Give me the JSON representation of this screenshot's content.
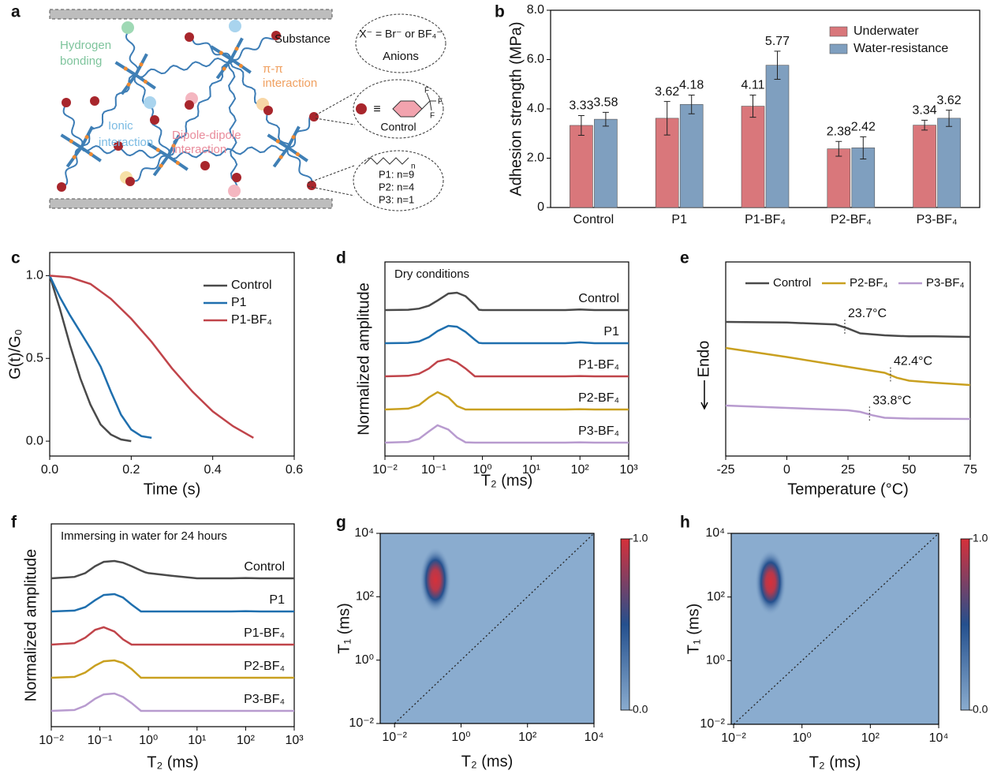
{
  "panel_labels": [
    "a",
    "b",
    "c",
    "d",
    "e",
    "f",
    "g",
    "h"
  ],
  "diagram": {
    "labels": [
      "Hydrogen",
      "bonding",
      "Substance",
      "X⁻ = Br⁻ or BF₄⁻",
      "Anions",
      "π-π",
      "interaction",
      "Ionic",
      "interaction",
      "Dipole-dipole",
      "interaction",
      "Control",
      "P1: n=9",
      "P2: n=4",
      "P3: n=1",
      "F",
      "F",
      "F",
      "n",
      "≡"
    ]
  },
  "chart_data": [
    {
      "type": "bar",
      "ylabel": "Adhesion strength (MPa)",
      "categories": [
        "Control",
        "P1",
        "P1-BF₄",
        "P2-BF₄",
        "P3-BF₄"
      ],
      "series": [
        {
          "name": "Underwater",
          "color": "#d9777b",
          "values": [
            3.33,
            3.62,
            4.11,
            2.38,
            3.34
          ],
          "errors": [
            0.4,
            0.68,
            0.45,
            0.3,
            0.2
          ]
        },
        {
          "name": "Water-resistance",
          "color": "#7f9fbf",
          "values": [
            3.58,
            4.18,
            5.77,
            2.42,
            3.62
          ],
          "errors": [
            0.28,
            0.38,
            0.57,
            0.45,
            0.33
          ]
        }
      ],
      "ylim": [
        0,
        8
      ],
      "yticks": [
        0,
        {
          "value": 2,
          "label": "2.0"
        },
        {
          "value": 4,
          "label": "4.0"
        },
        {
          "value": 6,
          "label": "6.0"
        },
        {
          "value": 8,
          "label": "8.0"
        }
      ],
      "legend": "upper right"
    },
    {
      "type": "line",
      "xlabel": "Time (s)",
      "ylabel": "G(t)/G₀",
      "series": [
        {
          "name": "Control",
          "color": "#4a4a4a",
          "x": [
            0,
            0.025,
            0.05,
            0.075,
            0.1,
            0.125,
            0.15,
            0.175,
            0.2
          ],
          "values": [
            1,
            0.8,
            0.58,
            0.38,
            0.22,
            0.1,
            0.04,
            0.01,
            0
          ]
        },
        {
          "name": "P1",
          "color": "#1f6fae",
          "x": [
            0,
            0.025,
            0.05,
            0.075,
            0.1,
            0.125,
            0.15,
            0.175,
            0.2,
            0.225,
            0.25
          ],
          "values": [
            1,
            0.87,
            0.76,
            0.66,
            0.56,
            0.45,
            0.3,
            0.16,
            0.07,
            0.03,
            0.02
          ]
        },
        {
          "name": "P1-BF₄",
          "color": "#c0444a",
          "x": [
            0,
            0.05,
            0.1,
            0.15,
            0.2,
            0.25,
            0.3,
            0.35,
            0.4,
            0.45,
            0.5
          ],
          "values": [
            1,
            0.99,
            0.95,
            0.86,
            0.74,
            0.6,
            0.44,
            0.3,
            0.18,
            0.09,
            0.02
          ]
        }
      ],
      "xlim": [
        0,
        0.6
      ],
      "xticks": [
        {
          "value": 0,
          "label": "0.0"
        },
        0.2,
        0.4,
        0.6
      ],
      "ylim": [
        -0.09,
        1.14
      ],
      "yticks": [
        {
          "value": 0,
          "label": "0.0"
        },
        0.5,
        {
          "value": 1,
          "label": "1.0"
        }
      ],
      "legend": "upper right"
    },
    {
      "type": "ridgeline",
      "title": "Dry conditions",
      "xlabel": "T₂ (ms)",
      "ylabel": "Normalized amplitude",
      "x": [
        0.01,
        0.03,
        0.05,
        0.08,
        0.12,
        0.2,
        0.3,
        0.45,
        0.7,
        0.85,
        1,
        3,
        10,
        50,
        100,
        200,
        1000
      ],
      "series": [
        {
          "name": "Control",
          "color": "#4a4a4a",
          "values": [
            0,
            0.02,
            0.08,
            0.25,
            0.55,
            0.95,
            1,
            0.8,
            0.3,
            0.02,
            0,
            0,
            0,
            0,
            0.03,
            0,
            0
          ]
        },
        {
          "name": "P1",
          "color": "#1f6fae",
          "values": [
            0,
            0.02,
            0.1,
            0.35,
            0.7,
            1,
            0.95,
            0.65,
            0.2,
            0.02,
            0,
            0,
            0,
            0,
            0.05,
            0,
            0
          ]
        },
        {
          "name": "P1-BF₄",
          "color": "#c0444a",
          "values": [
            0,
            0.03,
            0.15,
            0.45,
            0.85,
            1,
            0.8,
            0.45,
            0,
            0,
            0,
            0,
            0,
            0,
            0.02,
            0,
            0
          ]
        },
        {
          "name": "P2-BF₄",
          "color": "#c9a020",
          "values": [
            0,
            0.05,
            0.25,
            0.7,
            1,
            0.7,
            0.2,
            0,
            0,
            0,
            0,
            0,
            0,
            0,
            0.02,
            0,
            0
          ]
        },
        {
          "name": "P3-BF₄",
          "color": "#b89bcf",
          "values": [
            0,
            0.04,
            0.22,
            0.65,
            1,
            0.75,
            0.3,
            0.02,
            0,
            0,
            0,
            0,
            0,
            0,
            0.02,
            0,
            0
          ]
        }
      ],
      "xlim": [
        0.01,
        1000
      ],
      "log_x": true,
      "xticks": [
        {
          "value": 0.01,
          "label": "10⁻²"
        },
        {
          "value": 0.1,
          "label": "10⁻¹"
        },
        {
          "value": 1,
          "label": "10⁰"
        },
        {
          "value": 10,
          "label": "10¹"
        },
        {
          "value": 100,
          "label": "10²"
        },
        {
          "value": 1000,
          "label": "10³"
        }
      ]
    },
    {
      "type": "line",
      "xlabel": "Temperature (°C)",
      "ylabel": "Endo",
      "series": [
        {
          "name": "Control",
          "color": "#4a4a4a",
          "x": [
            -25,
            0,
            20,
            25,
            30,
            40,
            50,
            60,
            75
          ],
          "values": [
            5.28,
            5.25,
            5.15,
            4.95,
            4.7,
            4.6,
            4.55,
            4.55,
            4.52
          ],
          "annotation": {
            "value": 23.7,
            "label": "23.7°C"
          }
        },
        {
          "name": "P2-BF₄",
          "color": "#c9a020",
          "x": [
            -25,
            0,
            25,
            40,
            45,
            50,
            60,
            75
          ],
          "values": [
            3.96,
            3.5,
            3.0,
            2.7,
            2.45,
            2.3,
            2.2,
            2.08
          ],
          "annotation": {
            "value": 42.4,
            "label": "42.4°C"
          }
        },
        {
          "name": "P3-BF₄",
          "color": "#b89bcf",
          "x": [
            -25,
            0,
            25,
            30,
            35,
            40,
            50,
            75
          ],
          "values": [
            1.04,
            0.92,
            0.8,
            0.72,
            0.55,
            0.42,
            0.38,
            0.36
          ],
          "annotation": {
            "value": 33.8,
            "label": "33.8°C"
          }
        }
      ],
      "xlim": [
        -25,
        75
      ],
      "xticks": [
        -25,
        0,
        25,
        50,
        75
      ],
      "legend": "top"
    },
    {
      "type": "ridgeline",
      "title": "Immersing in water for 24 hours",
      "xlabel": "T₂ (ms)",
      "ylabel": "Normalized amplitude",
      "x": [
        0.01,
        0.03,
        0.05,
        0.08,
        0.12,
        0.2,
        0.3,
        0.45,
        0.7,
        0.85,
        1,
        3,
        10,
        50,
        100,
        200,
        1000
      ],
      "series": [
        {
          "name": "Control",
          "color": "#4a4a4a",
          "values": [
            0,
            0.08,
            0.3,
            0.7,
            0.95,
            1,
            0.9,
            0.7,
            0.45,
            0.35,
            0.3,
            0.15,
            0,
            0,
            0.02,
            0,
            0
          ]
        },
        {
          "name": "P1",
          "color": "#1f6fae",
          "values": [
            0,
            0.05,
            0.25,
            0.65,
            0.95,
            1,
            0.8,
            0.4,
            0,
            0,
            0,
            0,
            0,
            0,
            0.02,
            0,
            0
          ]
        },
        {
          "name": "P1-BF₄",
          "color": "#c0444a",
          "values": [
            0,
            0.08,
            0.4,
            0.85,
            1,
            0.75,
            0.3,
            0,
            0,
            0,
            0,
            0,
            0,
            0,
            0,
            0,
            0
          ]
        },
        {
          "name": "P2-BF₄",
          "color": "#c9a020",
          "values": [
            0,
            0.05,
            0.3,
            0.7,
            0.95,
            1,
            0.85,
            0.5,
            0,
            0,
            0,
            0,
            0,
            0,
            0,
            0,
            0
          ]
        },
        {
          "name": "P3-BF₄",
          "color": "#b89bcf",
          "values": [
            0,
            0.05,
            0.3,
            0.7,
            0.95,
            1,
            0.8,
            0.45,
            0,
            0,
            0,
            0,
            0,
            0,
            0,
            0,
            0
          ]
        }
      ],
      "xlim": [
        0.01,
        1000
      ],
      "log_x": true,
      "xticks": [
        {
          "value": 0.01,
          "label": "10⁻²"
        },
        {
          "value": 0.1,
          "label": "10⁻¹"
        },
        {
          "value": 1,
          "label": "10⁰"
        },
        {
          "value": 10,
          "label": "10¹"
        },
        {
          "value": 100,
          "label": "10²"
        },
        {
          "value": 1000,
          "label": "10³"
        }
      ]
    },
    {
      "type": "heatmap",
      "xlabel": "T₂ (ms)",
      "ylabel": "T₁ (ms)",
      "x": [
        0.17
      ],
      "values": [
        340
      ],
      "xlim": [
        0.0037,
        10000
      ],
      "ylim": [
        0.01,
        10000
      ],
      "log_x": true,
      "log_y": true,
      "xticks": [
        {
          "value": 0.01,
          "label": "10⁻²"
        },
        {
          "value": 1,
          "label": "10⁰"
        },
        {
          "value": 100,
          "label": "10²"
        },
        {
          "value": 10000,
          "label": "10⁴"
        }
      ],
      "yticks": [
        {
          "value": 0.01,
          "label": "10⁻²"
        },
        {
          "value": 1,
          "label": "10⁰"
        },
        {
          "value": 100,
          "label": "10²"
        },
        {
          "value": 10000,
          "label": "10⁴"
        }
      ],
      "colorbar": {
        "lim": [
          0,
          1
        ],
        "ticks": [
          {
            "value": 0,
            "label": "0.0"
          },
          {
            "value": 1,
            "label": "1.0"
          }
        ],
        "colors": [
          "#8aaccf",
          "#24508e",
          "#d6303a"
        ]
      }
    },
    {
      "type": "heatmap",
      "xlabel": "T₂ (ms)",
      "ylabel": "T₁ (ms)",
      "x": [
        0.12
      ],
      "values": [
        290
      ],
      "xlim": [
        0.0085,
        10000
      ],
      "ylim": [
        0.01,
        10000
      ],
      "log_x": true,
      "log_y": true,
      "xticks": [
        {
          "value": 0.01,
          "label": "10⁻²"
        },
        {
          "value": 1,
          "label": "10⁰"
        },
        {
          "value": 100,
          "label": "10²"
        },
        {
          "value": 10000,
          "label": "10⁴"
        }
      ],
      "yticks": [
        {
          "value": 0.01,
          "label": "10⁻²"
        },
        {
          "value": 1,
          "label": "10⁰"
        },
        {
          "value": 100,
          "label": "10²"
        },
        {
          "value": 10000,
          "label": "10⁴"
        }
      ],
      "colorbar": {
        "lim": [
          0,
          1
        ],
        "ticks": [
          {
            "value": 0,
            "label": "0.0"
          },
          {
            "value": 1,
            "label": "1.0"
          }
        ],
        "colors": [
          "#8aaccf",
          "#24508e",
          "#d6303a"
        ]
      }
    }
  ]
}
